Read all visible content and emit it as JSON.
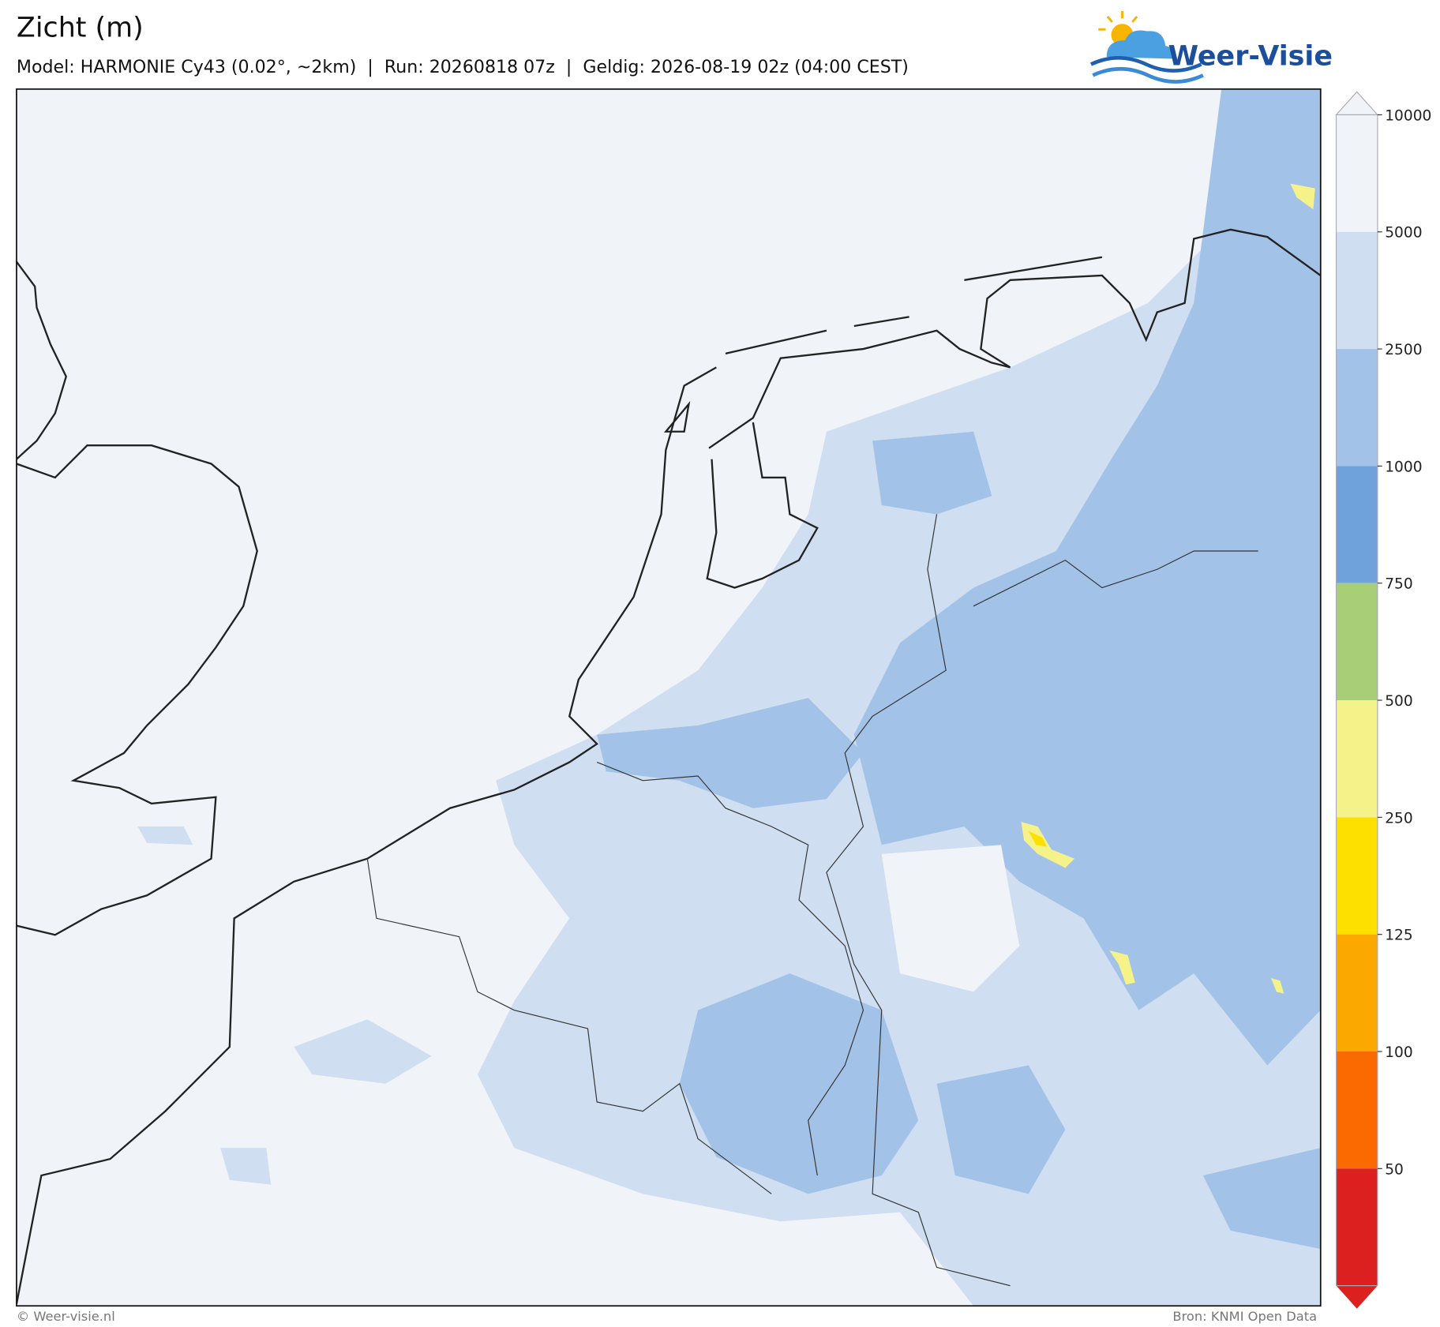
{
  "header": {
    "title": "Zicht (m)",
    "subtitle": "Model: HARMONIE Cy43 (0.02°, ~2km)  |  Run: 20260818 07z  |  Geldig: 2026-08-19 02z (04:00 CEST)",
    "logo": "Weer-Visie"
  },
  "colorbar": {
    "levels": [
      10000,
      5000,
      2500,
      1000,
      750,
      500,
      250,
      125,
      100,
      50
    ],
    "colors": [
      "#f0f4f9",
      "#cfdef0",
      "#a3c2e8",
      "#6fa1da",
      "#a8cf78",
      "#f5f28a",
      "#fde000",
      "#fba800",
      "#fb6a00",
      "#dc2020"
    ]
  },
  "footer": {
    "left": "© Weer-visie.nl",
    "right": "Bron: KNMI Open Data"
  }
}
